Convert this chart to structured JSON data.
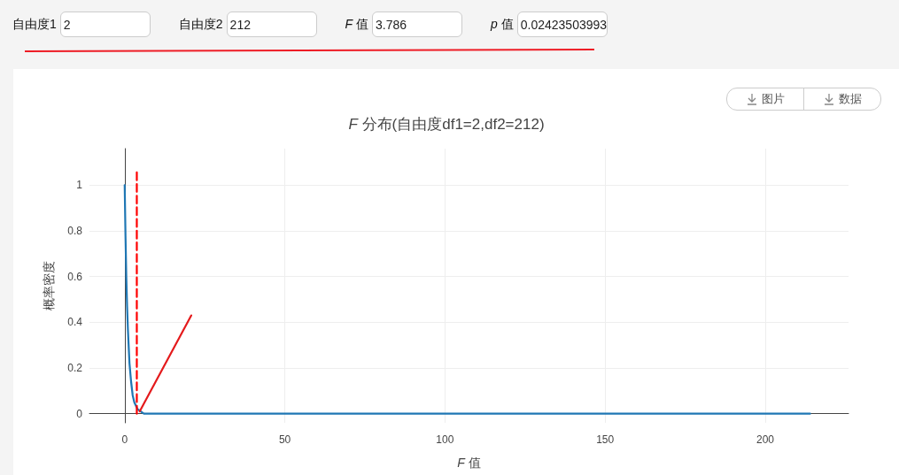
{
  "chart_data": [
    {
      "type": "other",
      "annotations": [
        "自由度1",
        "2",
        "自由度2",
        "212",
        "F 值",
        "3.786",
        "p 值",
        "0.02423503993"
      ]
    },
    {
      "type": "line",
      "title": "F 分布(自由度df1=2,df2=212)",
      "xlabel": "F 值",
      "ylabel": "概率密度",
      "series": [
        {
          "color": "#1f77b4",
          "x": [
            0,
            0.25,
            0.5,
            0.75,
            1,
            1.5,
            2,
            2.5,
            3,
            4,
            5,
            6,
            8,
            10,
            50,
            100,
            150,
            214
          ],
          "values": [
            1,
            0.78,
            0.6,
            0.47,
            0.37,
            0.22,
            0.14,
            0.08,
            0.05,
            0.02,
            0.01,
            0,
            0,
            0,
            0,
            0,
            0,
            0
          ]
        },
        {
          "color": "#ff0000",
          "line_style": "dashed",
          "x": [
            3.786,
            3.786
          ],
          "values": [
            0,
            1.07
          ]
        },
        {
          "color": "#e41a1c",
          "x": [
            4.7,
            20.8
          ],
          "values": [
            0.01,
            0.43
          ]
        }
      ],
      "xlim": [
        -11,
        226
      ],
      "ylim": [
        -0.04,
        1.16
      ],
      "xticks": [
        0,
        50,
        100,
        150,
        200
      ],
      "yticks": [
        0,
        0.2,
        0.4,
        0.6,
        0.8,
        1
      ],
      "grid": true,
      "marker": "none",
      "line_style": "solid",
      "annotations": [
        "图片",
        "数据"
      ]
    }
  ]
}
